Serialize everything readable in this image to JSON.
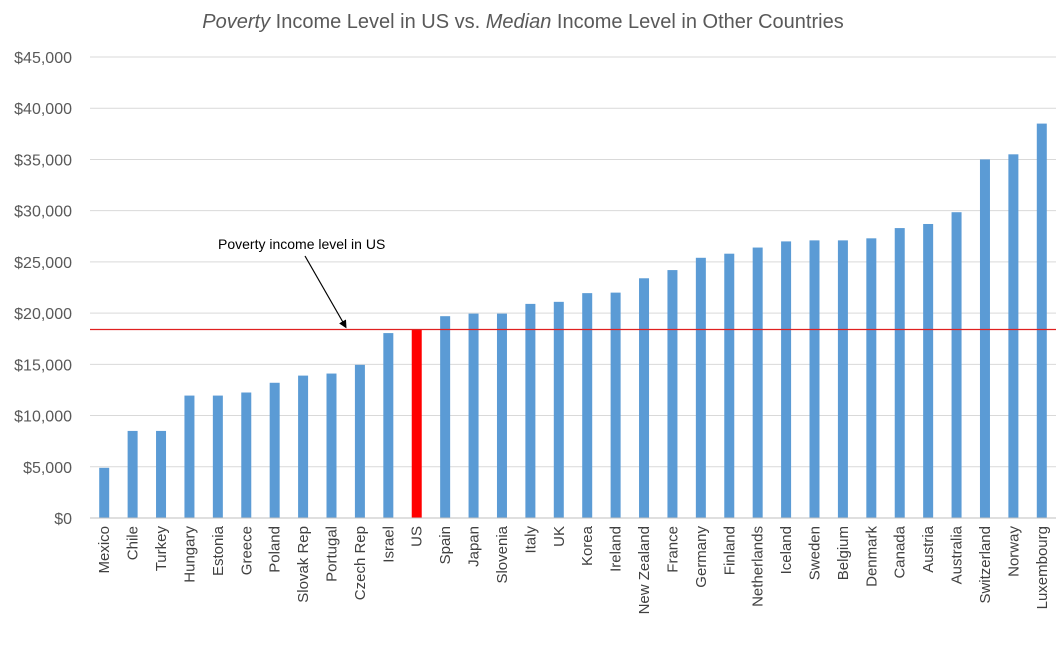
{
  "chart_data": {
    "type": "bar",
    "title_parts": [
      {
        "text": "Poverty",
        "italic": true
      },
      {
        "text": " Income Level in US vs. ",
        "italic": false
      },
      {
        "text": "Median",
        "italic": true
      },
      {
        "text": " Income Level in Other Countries",
        "italic": false
      }
    ],
    "title": "Poverty Income Level in US vs. Median Income Level in Other Countries",
    "xlabel": "",
    "ylabel": "",
    "ylim": [
      0,
      45000
    ],
    "y_ticks": [
      0,
      5000,
      10000,
      15000,
      20000,
      25000,
      30000,
      35000,
      40000,
      45000
    ],
    "y_tick_labels": [
      "$0",
      "$5,000",
      "$10,000",
      "$15,000",
      "$20,000",
      "$25,000",
      "$30,000",
      "$35,000",
      "$40,000",
      "$45,000"
    ],
    "grid": true,
    "categories": [
      "Mexico",
      "Chile",
      "Turkey",
      "Hungary",
      "Estonia",
      "Greece",
      "Poland",
      "Slovak Rep",
      "Portugal",
      "Czech Rep",
      "Israel",
      "US",
      "Spain",
      "Japan",
      "Slovenia",
      "Italy",
      "UK",
      "Korea",
      "Ireland",
      "New Zealand",
      "France",
      "Germany",
      "Finland",
      "Netherlands",
      "Iceland",
      "Sweden",
      "Belgium",
      "Denmark",
      "Canada",
      "Austria",
      "Australia",
      "Switzerland",
      "Norway",
      "Luxembourg"
    ],
    "values": [
      4900,
      8500,
      8500,
      11950,
      11950,
      12250,
      13200,
      13900,
      14100,
      14950,
      18050,
      18400,
      19700,
      19950,
      19950,
      20900,
      21100,
      21950,
      22000,
      23400,
      24200,
      25400,
      25800,
      26400,
      27000,
      27100,
      27100,
      27300,
      28300,
      28700,
      29850,
      35000,
      35500,
      38500
    ],
    "highlight_category": "US",
    "colors": {
      "bar": "#5b9bd5",
      "highlight": "#ff0000",
      "reference_line": "#e02020",
      "grid": "#d9d9d9",
      "axis": "#bfbfbf"
    },
    "reference_line": {
      "value": 18400,
      "label": "Poverty income level in US"
    }
  }
}
